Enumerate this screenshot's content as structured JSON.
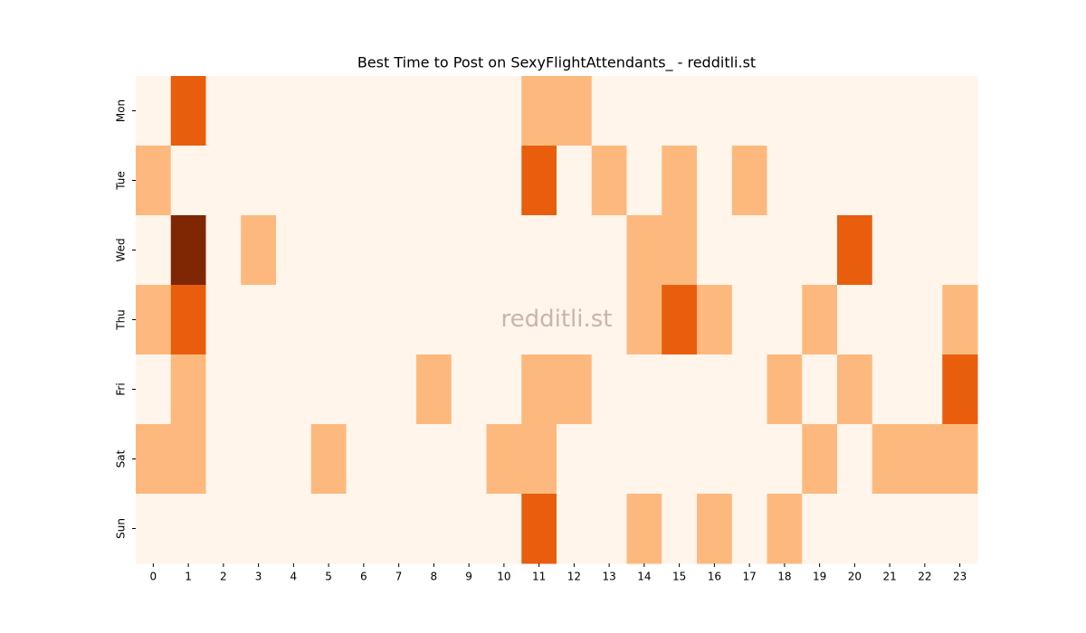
{
  "chart_data": {
    "type": "heatmap",
    "title": "Best Time to Post on SexyFlightAttendants_ - redditli.st",
    "annotation": "redditli.st",
    "x": [
      0,
      1,
      2,
      3,
      4,
      5,
      6,
      7,
      8,
      9,
      10,
      11,
      12,
      13,
      14,
      15,
      16,
      17,
      18,
      19,
      20,
      21,
      22,
      23
    ],
    "y_categories": [
      "Mon",
      "Tue",
      "Wed",
      "Thu",
      "Fri",
      "Sat",
      "Sun"
    ],
    "values": [
      [
        0,
        2,
        0,
        0,
        0,
        0,
        0,
        0,
        0,
        0,
        0,
        1,
        1,
        0,
        0,
        0,
        0,
        0,
        0,
        0,
        0,
        0,
        0,
        0
      ],
      [
        1,
        0,
        0,
        0,
        0,
        0,
        0,
        0,
        0,
        0,
        0,
        2,
        0,
        1,
        0,
        1,
        0,
        1,
        0,
        0,
        0,
        0,
        0,
        0
      ],
      [
        0,
        3,
        0,
        1,
        0,
        0,
        0,
        0,
        0,
        0,
        0,
        0,
        0,
        0,
        1,
        1,
        0,
        0,
        0,
        0,
        2,
        0,
        0,
        0
      ],
      [
        1,
        2,
        0,
        0,
        0,
        0,
        0,
        0,
        0,
        0,
        0,
        0,
        0,
        0,
        1,
        2,
        1,
        0,
        0,
        1,
        0,
        0,
        0,
        1
      ],
      [
        0,
        1,
        0,
        0,
        0,
        0,
        0,
        0,
        1,
        0,
        0,
        1,
        1,
        0,
        0,
        0,
        0,
        0,
        1,
        0,
        1,
        0,
        0,
        2
      ],
      [
        1,
        1,
        0,
        0,
        0,
        1,
        0,
        0,
        0,
        0,
        1,
        1,
        0,
        0,
        0,
        0,
        0,
        0,
        0,
        1,
        0,
        1,
        1,
        1
      ],
      [
        0,
        0,
        0,
        0,
        0,
        0,
        0,
        0,
        0,
        0,
        0,
        2,
        0,
        0,
        1,
        0,
        1,
        0,
        1,
        0,
        0,
        0,
        0,
        0
      ]
    ],
    "zlim": [
      0,
      3
    ],
    "colorscale": [
      "#fff5eb",
      "#fdb97d",
      "#e95e0d",
      "#7f2704"
    ]
  }
}
